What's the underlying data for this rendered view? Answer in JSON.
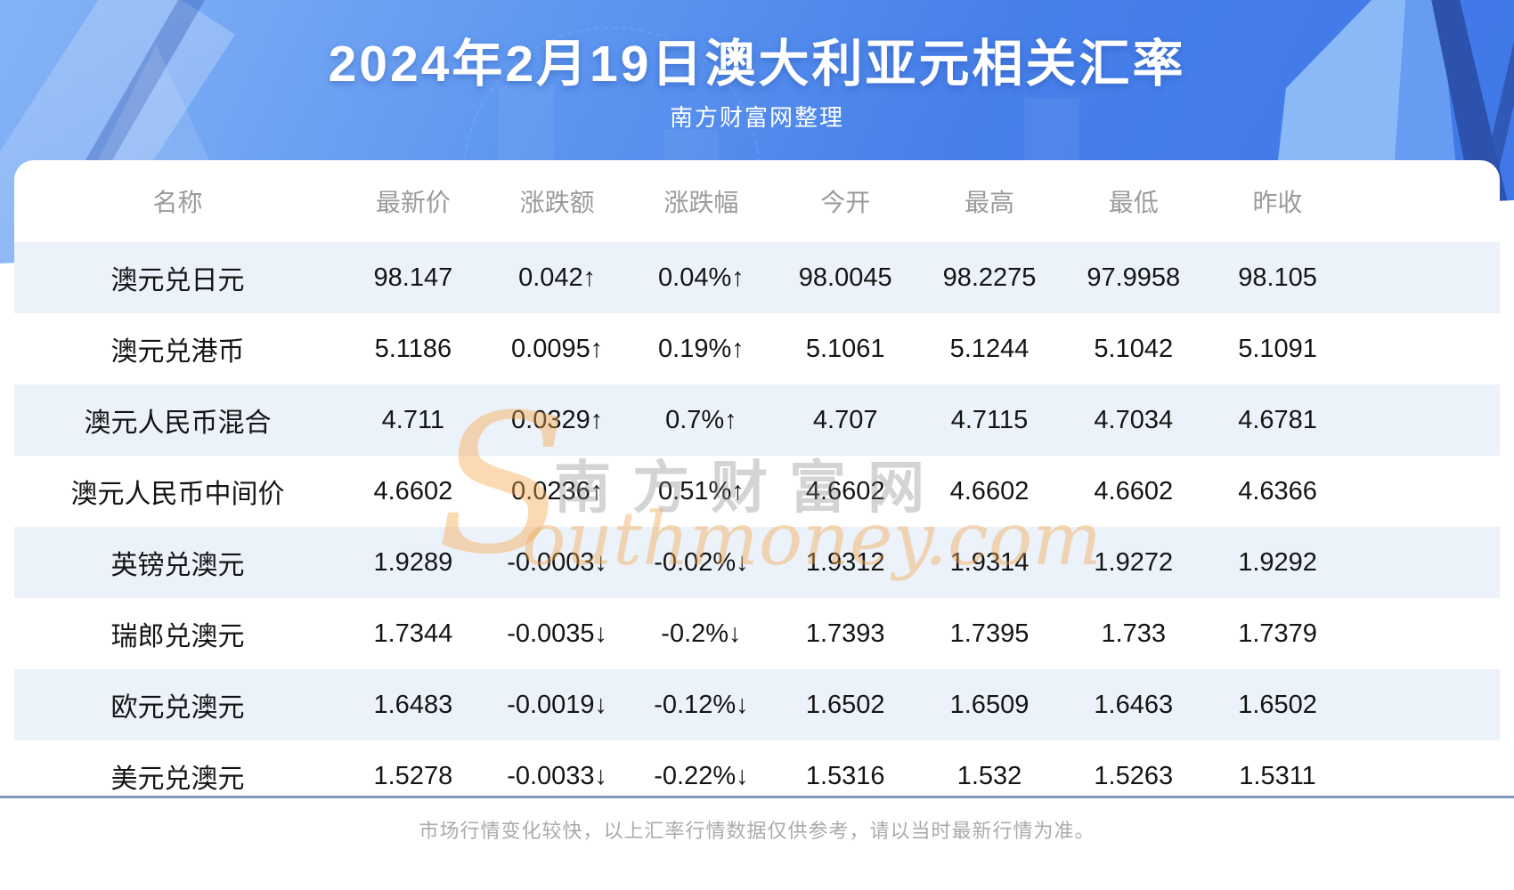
{
  "header": {
    "title": "2024年2月19日澳大利亚元相关汇率",
    "subtitle": "南方财富网整理"
  },
  "table": {
    "columns": [
      "名称",
      "最新价",
      "涨跌额",
      "涨跌幅",
      "今开",
      "最高",
      "最低",
      "昨收"
    ],
    "rows": [
      {
        "name": "澳元兑日元",
        "latest": "98.147",
        "change": "0.042↑",
        "change_pct": "0.04%↑",
        "open": "98.0045",
        "high": "98.2275",
        "low": "97.9958",
        "prev": "98.105",
        "trend": "up"
      },
      {
        "name": "澳元兑港币",
        "latest": "5.1186",
        "change": "0.0095↑",
        "change_pct": "0.19%↑",
        "open": "5.1061",
        "high": "5.1244",
        "low": "5.1042",
        "prev": "5.1091",
        "trend": "up"
      },
      {
        "name": "澳元人民币混合",
        "latest": "4.711",
        "change": "0.0329↑",
        "change_pct": "0.7%↑",
        "open": "4.707",
        "high": "4.7115",
        "low": "4.7034",
        "prev": "4.6781",
        "trend": "up"
      },
      {
        "name": "澳元人民币中间价",
        "latest": "4.6602",
        "change": "0.0236↑",
        "change_pct": "0.51%↑",
        "open": "4.6602",
        "high": "4.6602",
        "low": "4.6602",
        "prev": "4.6366",
        "trend": "up"
      },
      {
        "name": "英镑兑澳元",
        "latest": "1.9289",
        "change": "-0.0003↓",
        "change_pct": "-0.02%↓",
        "open": "1.9312",
        "high": "1.9314",
        "low": "1.9272",
        "prev": "1.9292",
        "trend": "down"
      },
      {
        "name": "瑞郎兑澳元",
        "latest": "1.7344",
        "change": "-0.0035↓",
        "change_pct": "-0.2%↓",
        "open": "1.7393",
        "high": "1.7395",
        "low": "1.733",
        "prev": "1.7379",
        "trend": "down"
      },
      {
        "name": "欧元兑澳元",
        "latest": "1.6483",
        "change": "-0.0019↓",
        "change_pct": "-0.12%↓",
        "open": "1.6502",
        "high": "1.6509",
        "low": "1.6463",
        "prev": "1.6502",
        "trend": "down"
      },
      {
        "name": "美元兑澳元",
        "latest": "1.5278",
        "change": "-0.0033↓",
        "change_pct": "-0.22%↓",
        "open": "1.5316",
        "high": "1.532",
        "low": "1.5263",
        "prev": "1.5311",
        "trend": "down"
      }
    ]
  },
  "watermark": {
    "s": "S",
    "cjk": "南方财富网",
    "latin": "outhmoney.com"
  },
  "footer": {
    "disclaimer": "市场行情变化较快，以上汇率行情数据仅供参考，请以当时最新行情为准。"
  },
  "colors": {
    "up": "#ee1111",
    "down": "#108c10",
    "accent_blue": "#4780e9",
    "row_alt": "#ecf2fa",
    "divider": "#7e99bb"
  }
}
